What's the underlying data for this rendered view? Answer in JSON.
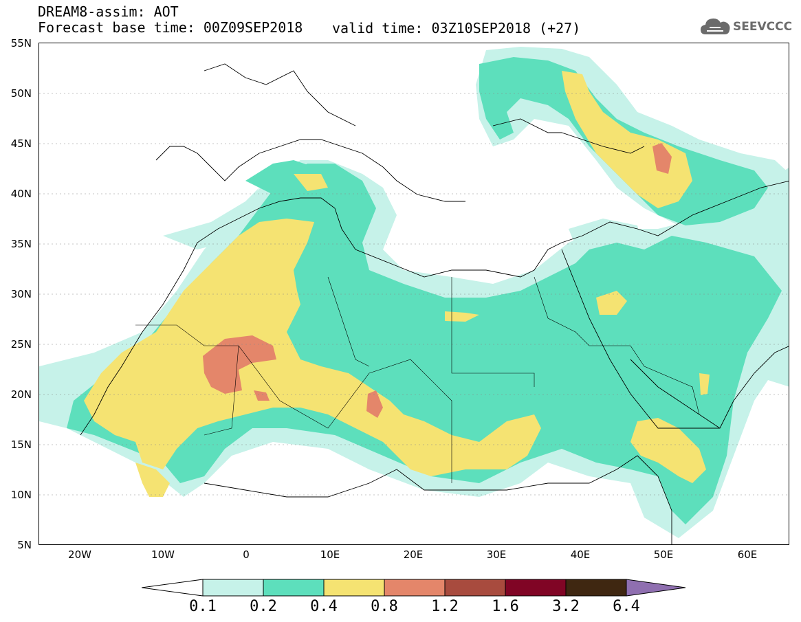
{
  "header": {
    "title": "DREAM8-assim: AOT",
    "base_time": "Forecast base time: 00Z09SEP2018",
    "valid_time": "valid time: 03Z10SEP2018 (+27)"
  },
  "logo": {
    "icon": "cloud-icon",
    "text": "SEEVCCC"
  },
  "map": {
    "lat_labels": [
      "55N",
      "50N",
      "45N",
      "40N",
      "35N",
      "30N",
      "25N",
      "20N",
      "15N",
      "10N",
      "5N"
    ],
    "lon_labels": [
      "20W",
      "10W",
      "0",
      "10E",
      "20E",
      "30E",
      "40E",
      "50E",
      "60E"
    ],
    "lat_range": [
      5,
      55
    ],
    "lon_range": [
      -25,
      65
    ],
    "field": "AOT"
  },
  "colorbar": {
    "labels": [
      "0.1",
      "0.2",
      "0.4",
      "0.8",
      "1.2",
      "1.6",
      "3.2",
      "6.4"
    ],
    "colors": [
      "#c6f2e9",
      "#5ddfbc",
      "#f5e372",
      "#e4866a",
      "#a84b3e",
      "#800525",
      "#3f2711"
    ],
    "under_color": "#ffffff",
    "over_color": "#8f6fb0"
  }
}
